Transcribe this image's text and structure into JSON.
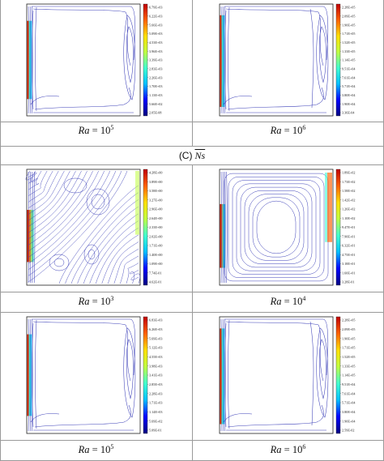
{
  "section": {
    "label": "(C)",
    "symbol": "Ns"
  },
  "panels": [
    {
      "caption_var": "Ra",
      "caption_eq": "=",
      "caption_base": "10",
      "caption_exp": "5",
      "colorbar_labels": [
        "6.79E+03",
        "6.22E+03",
        "5.66E+03",
        "5.09E+03",
        "4.53E+03",
        "3.96E+03",
        "3.39E+03",
        "2.83E+03",
        "2.26E+03",
        "1.70E+03",
        "1.13E+03",
        "5.66E+02",
        "2.05E-08"
      ]
    },
    {
      "caption_var": "Ra",
      "caption_eq": "=",
      "caption_base": "10",
      "caption_exp": "6",
      "colorbar_labels": [
        "2.28E+05",
        "2.09E+05",
        "1.90E+05",
        "1.71E+05",
        "1.52E+05",
        "1.33E+05",
        "1.14E+05",
        "9.51E+04",
        "7.61E+04",
        "5.71E+04",
        "3.80E+04",
        "1.90E+04",
        "3.36E-04"
      ]
    },
    {
      "caption_var": "Ra",
      "caption_eq": "=",
      "caption_base": "10",
      "caption_exp": "3",
      "colorbar_labels": [
        "4.28E+00",
        "3.89E+00",
        "3.58E+00",
        "3.27E+00",
        "2.96E+00",
        "2.64E+00",
        "2.33E+00",
        "2.02E+00",
        "1.71E+00",
        "1.40E+00",
        "1.09E+00",
        "7.74E-01",
        "4.62E-01"
      ]
    },
    {
      "caption_var": "Ra",
      "caption_eq": "=",
      "caption_base": "10",
      "caption_exp": "4",
      "colorbar_labels": [
        "1.89E+02",
        "1.73E+02",
        "1.58E+02",
        "1.42E+02",
        "1.26E+02",
        "1.10E+02",
        "9.47E+01",
        "7.90E+01",
        "6.32E+01",
        "4.75E+01",
        "3.18E+01",
        "1.60E+01",
        "3.28E-01"
      ]
    },
    {
      "caption_var": "Ra",
      "caption_eq": "=",
      "caption_base": "10",
      "caption_exp": "5",
      "colorbar_labels": [
        "6.83E+03",
        "6.26E+03",
        "5.69E+03",
        "5.12E+03",
        "4.55E+03",
        "3.98E+03",
        "3.41E+03",
        "2.85E+03",
        "2.28E+03",
        "1.71E+03",
        "1.14E+03",
        "5.69E+02",
        "5.09E-01"
      ]
    },
    {
      "caption_var": "Ra",
      "caption_eq": "=",
      "caption_base": "10",
      "caption_exp": "6",
      "colorbar_labels": [
        "2.28E+05",
        "2.09E+05",
        "1.90E+05",
        "1.71E+05",
        "1.52E+05",
        "1.33E+05",
        "1.14E+05",
        "9.51E+04",
        "7.61E+04",
        "5.71E+04",
        "3.80E+04",
        "1.90E+04",
        "2.59E-02"
      ]
    }
  ],
  "colors": {
    "contour": "#3b3fb8",
    "colormap": [
      "#000080",
      "#0000ff",
      "#00c0ff",
      "#40ffd0",
      "#c0ff40",
      "#ffe000",
      "#ff6000",
      "#c00000"
    ]
  }
}
